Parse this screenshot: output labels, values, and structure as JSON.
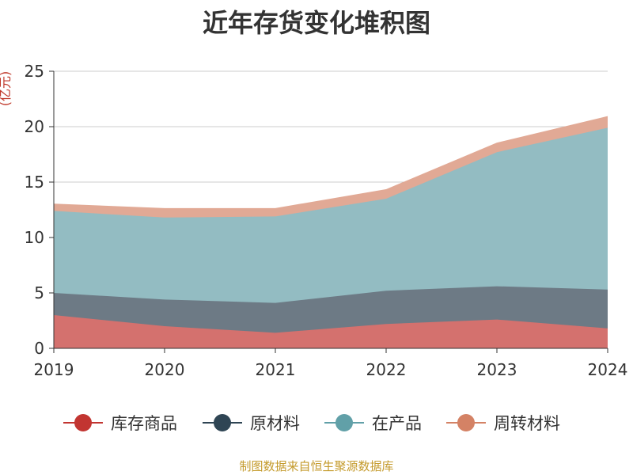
{
  "chart_data": {
    "type": "area",
    "title": "近年存货变化堆积图",
    "ylabel": "(亿元)",
    "source_note": "制图数据来自恒生聚源数据库",
    "x": [
      "2019",
      "2020",
      "2021",
      "2022",
      "2023",
      "2024"
    ],
    "y_ticks": [
      "0",
      "5",
      "10",
      "15",
      "20",
      "25"
    ],
    "ylim": [
      0,
      25
    ],
    "stacked": true,
    "legend_position": "bottom",
    "grid": true,
    "series": [
      {
        "name": "库存商品",
        "color": "#c23531",
        "fill": "#d4716e",
        "values": [
          3.0,
          2.0,
          1.4,
          2.2,
          2.6,
          1.8
        ]
      },
      {
        "name": "原材料",
        "color": "#2f4554",
        "fill": "#6d7a85",
        "values": [
          2.0,
          2.4,
          2.7,
          3.0,
          3.0,
          3.5
        ]
      },
      {
        "name": "在产品",
        "color": "#61a0a8",
        "fill": "#93bcc2",
        "values": [
          7.4,
          7.4,
          7.8,
          8.3,
          12.1,
          14.6
        ]
      },
      {
        "name": "周转材料",
        "color": "#d48265",
        "fill": "#e1a995",
        "values": [
          0.6,
          0.8,
          0.7,
          0.8,
          0.8,
          1.0
        ]
      }
    ]
  }
}
